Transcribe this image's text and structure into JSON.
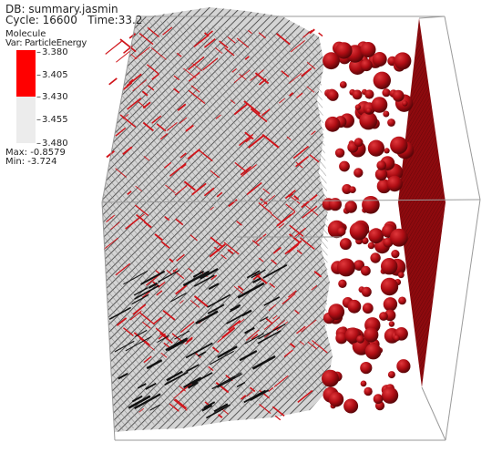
{
  "header": {
    "db_label": "DB: summary.jasmin",
    "cycle_label": "Cycle: 16600",
    "time_label": "Time:33.2"
  },
  "legend": {
    "plot_type": "Molecule",
    "variable": "Var: ParticleEnergy",
    "ticks": [
      "3.380",
      "3.405",
      "3.430",
      "3.455",
      "3.480"
    ],
    "colors": {
      "high": "#ff0000",
      "low": "#ececec"
    },
    "max_label": "Max: -0.8579",
    "min_label": "Min: -3.724"
  },
  "scene": {
    "dense_color": "#bdbdbd",
    "particle_color": "#b00d14",
    "slab_color": "#8e0a0e",
    "box_line_color": "#9a9a9a"
  }
}
